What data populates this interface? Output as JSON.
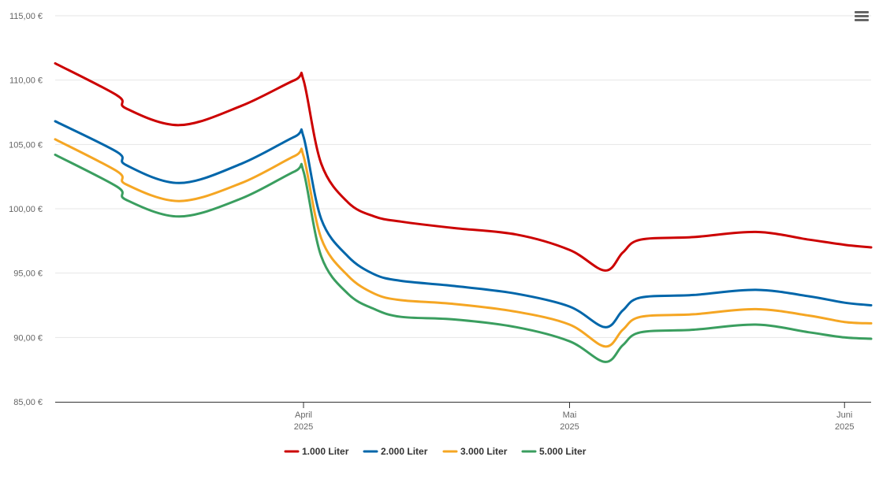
{
  "chart_data": {
    "type": "line",
    "title": "",
    "xlabel": "",
    "ylabel": "",
    "ylim": [
      85,
      115
    ],
    "y_ticks": [
      "85,00 €",
      "90,00 €",
      "95,00 €",
      "100,00 €",
      "105,00 €",
      "110,00 €",
      "115,00 €"
    ],
    "y_tick_values": [
      85,
      90,
      95,
      100,
      105,
      110,
      115
    ],
    "x_range": [
      "2025-03-04",
      "2025-06-04"
    ],
    "x_ticks": [
      {
        "date": "2025-04-01",
        "month": "April",
        "year": "2025"
      },
      {
        "date": "2025-05-01",
        "month": "Mai",
        "year": "2025"
      },
      {
        "date": "2025-06-01",
        "month": "Juni",
        "year": "2025"
      }
    ],
    "grid": "horizontal",
    "legend_position": "bottom-center",
    "x": [
      "2025-03-04",
      "2025-03-11",
      "2025-03-12",
      "2025-03-18",
      "2025-03-25",
      "2025-03-31",
      "2025-04-01",
      "2025-04-03",
      "2025-04-06",
      "2025-04-09",
      "2025-04-12",
      "2025-04-18",
      "2025-04-25",
      "2025-05-01",
      "2025-05-05",
      "2025-05-07",
      "2025-05-09",
      "2025-05-15",
      "2025-05-22",
      "2025-05-28",
      "2025-06-01",
      "2025-06-04"
    ],
    "series": [
      {
        "name": "1.000 Liter",
        "color": "#cc0000",
        "values": [
          111.3,
          108.8,
          107.8,
          106.5,
          108.0,
          110.0,
          110.0,
          103.5,
          100.5,
          99.4,
          99.0,
          98.5,
          98.0,
          96.8,
          95.2,
          96.6,
          97.6,
          97.8,
          98.2,
          97.6,
          97.2,
          97.0
        ]
      },
      {
        "name": "2.000 Liter",
        "color": "#0066aa",
        "values": [
          106.8,
          104.4,
          103.4,
          102.0,
          103.5,
          105.6,
          105.6,
          99.2,
          96.3,
          94.9,
          94.4,
          94.0,
          93.4,
          92.4,
          90.8,
          92.1,
          93.1,
          93.3,
          93.7,
          93.2,
          92.7,
          92.5
        ]
      },
      {
        "name": "3.000 Liter",
        "color": "#f5a623",
        "values": [
          105.4,
          102.9,
          101.9,
          100.6,
          102.0,
          104.1,
          104.1,
          97.7,
          94.8,
          93.4,
          92.9,
          92.6,
          92.0,
          91.0,
          89.3,
          90.6,
          91.6,
          91.8,
          92.2,
          91.7,
          91.2,
          91.1
        ]
      },
      {
        "name": "5.000 Liter",
        "color": "#3a9e5f",
        "values": [
          104.2,
          101.7,
          100.7,
          99.4,
          100.8,
          102.9,
          102.9,
          96.3,
          93.4,
          92.2,
          91.6,
          91.4,
          90.8,
          89.7,
          88.1,
          89.4,
          90.4,
          90.6,
          91.0,
          90.4,
          90.0,
          89.9
        ]
      }
    ]
  },
  "menu_icon": "hamburger-menu-icon"
}
